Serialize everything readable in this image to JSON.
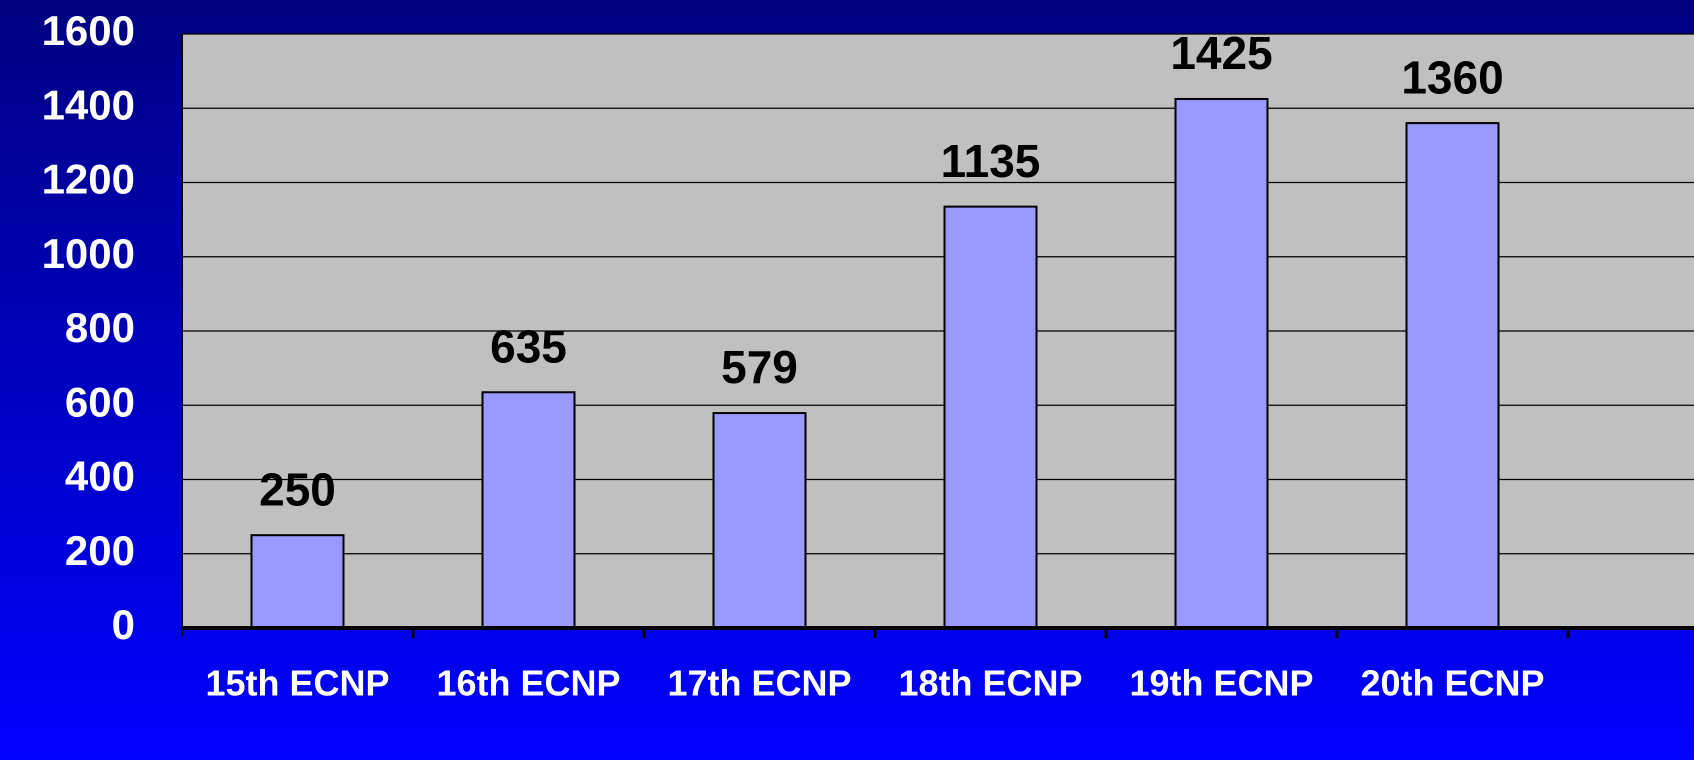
{
  "chart_data": {
    "type": "bar",
    "categories": [
      "15th ECNP",
      "16th ECNP",
      "17th ECNP",
      "18th ECNP",
      "19th ECNP",
      "20th ECNP"
    ],
    "values": [
      250,
      635,
      579,
      1135,
      1425,
      1360
    ],
    "color": "#9999ff",
    "ylim": [
      0,
      1600
    ],
    "yticks": [
      0,
      200,
      400,
      600,
      800,
      1000,
      1200,
      1400,
      1600
    ],
    "grid": true
  }
}
